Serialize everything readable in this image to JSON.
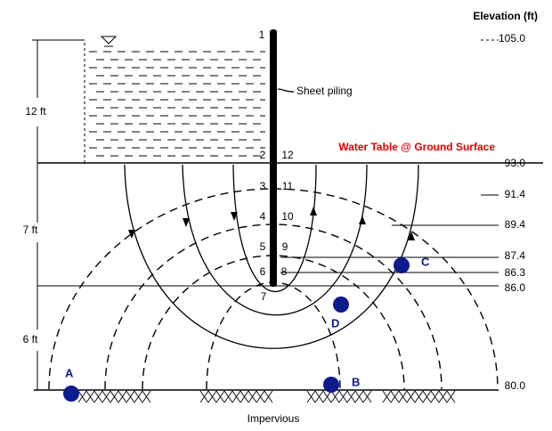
{
  "header": {
    "title": "Elevation (ft)"
  },
  "elevations": [
    "105.0",
    "93.0",
    "91.4",
    "89.4",
    "87.4",
    "86.3",
    "86.0",
    "80.0"
  ],
  "dimensions": [
    "12 ft",
    "7 ft",
    "6 ft"
  ],
  "labels": {
    "sheet_piling": "Sheet piling",
    "water_table": "Water Table @ Ground Surface",
    "impervious": "Impervious"
  },
  "equipotentials": [
    "1",
    "2",
    "3",
    "4",
    "5",
    "6",
    "7",
    "8",
    "9",
    "10",
    "11",
    "12"
  ],
  "points": [
    "A",
    "B",
    "C",
    "D"
  ]
}
